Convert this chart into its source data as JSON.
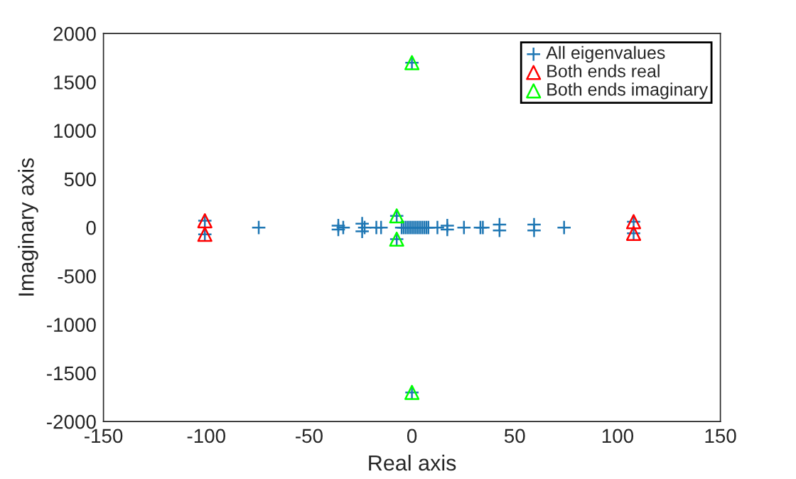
{
  "chart_data": {
    "type": "scatter",
    "xlabel": "Real axis",
    "ylabel": "Imaginary axis",
    "xlim": [
      -150,
      150
    ],
    "xticks": [
      -150,
      -100,
      -50,
      0,
      50,
      100,
      150
    ],
    "ylim": [
      -2000,
      2000
    ],
    "yticks": [
      -2000,
      -1500,
      -1000,
      -500,
      0,
      500,
      1000,
      1500,
      2000
    ],
    "grid": false,
    "legend": "top right",
    "series": [
      {
        "name": "All eigenvalues",
        "color": "#1f77b4",
        "marker": "cross",
        "x": [
          -100.7,
          -100.7,
          -74.5,
          -35.8,
          -35.8,
          -33.4,
          -24.2,
          -24.2,
          -23,
          -17.3,
          -15,
          -7.4,
          -7.4,
          -5,
          -4,
          -3,
          -2,
          -1,
          0,
          0,
          0,
          1,
          2,
          3,
          4,
          5,
          6,
          7,
          8,
          12.4,
          17.2,
          17.2,
          25.3,
          33.3,
          34.5,
          42.6,
          42.6,
          59.4,
          59.4,
          74,
          107.8,
          107.8
        ],
        "values": [
          70,
          -70,
          0,
          20,
          -20,
          0,
          40,
          -40,
          0,
          0,
          0,
          120,
          -120,
          0,
          0,
          0,
          0,
          0,
          0,
          1700,
          -1700,
          0,
          0,
          0,
          0,
          0,
          0,
          0,
          0,
          0,
          20,
          -20,
          0,
          0,
          0,
          30,
          -30,
          30,
          -30,
          0,
          60,
          -60
        ]
      },
      {
        "name": "Both ends real",
        "color": "#ff0000",
        "marker": "triangle",
        "x": [
          -100.7,
          -100.7,
          107.8,
          107.8
        ],
        "values": [
          70,
          -70,
          60,
          -60
        ]
      },
      {
        "name": "Both ends imaginary",
        "color": "#00ff00",
        "marker": "triangle",
        "x": [
          0,
          0,
          -7.4,
          -7.4
        ],
        "values": [
          1700,
          -1700,
          120,
          -120
        ]
      }
    ]
  }
}
